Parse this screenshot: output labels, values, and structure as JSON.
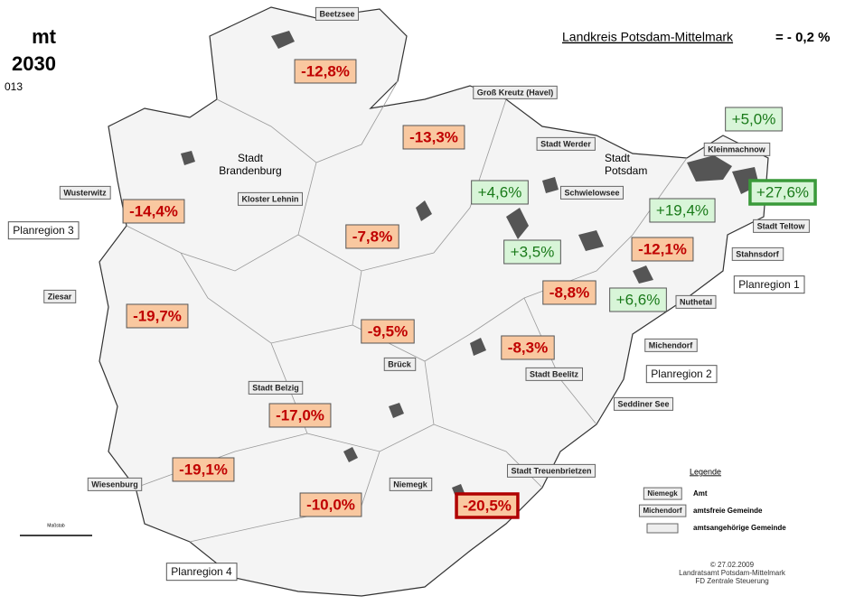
{
  "title": {
    "lines": [
      "mt",
      "2030",
      "013"
    ]
  },
  "summary": {
    "label": "Landkreis Potsdam-Mittelmark",
    "value": "= - 0,2 %"
  },
  "changes": [
    {
      "text": "-12,8%",
      "trend": "down"
    },
    {
      "text": "-13,3%",
      "trend": "down"
    },
    {
      "text": "+5,0%",
      "trend": "up"
    },
    {
      "text": "+27,6%",
      "trend": "up",
      "highlight": true
    },
    {
      "text": "+4,6%",
      "trend": "up"
    },
    {
      "text": "+19,4%",
      "trend": "up"
    },
    {
      "text": "-14,4%",
      "trend": "down"
    },
    {
      "text": "-7,8%",
      "trend": "down"
    },
    {
      "text": "+3,5%",
      "trend": "up"
    },
    {
      "text": "-12,1%",
      "trend": "down"
    },
    {
      "text": "-8,8%",
      "trend": "down"
    },
    {
      "text": "+6,6%",
      "trend": "up"
    },
    {
      "text": "-19,7%",
      "trend": "down"
    },
    {
      "text": "-9,5%",
      "trend": "down"
    },
    {
      "text": "-8,3%",
      "trend": "down"
    },
    {
      "text": "-17,0%",
      "trend": "down"
    },
    {
      "text": "-19,1%",
      "trend": "down"
    },
    {
      "text": "-10,0%",
      "trend": "down"
    },
    {
      "text": "-20,5%",
      "trend": "down",
      "highlight": true
    }
  ],
  "places": [
    "Beetzsee",
    "Groß Kreutz (Havel)",
    "Stadt Werder",
    "Schwielowsee",
    "Kleinmachnow",
    "Stadt Teltow",
    "Stahnsdorf",
    "Nuthetal",
    "Michendorf",
    "Stadt Beelitz",
    "Seddiner See",
    "Brück",
    "Stadt Treuenbrietzen",
    "Niemegk",
    "Wiesenburg",
    "Ziesar",
    "Wusterwitz",
    "Kloster Lehnin",
    "Stadt Belzig"
  ],
  "regions": [
    "Planregion 1",
    "Planregion 2",
    "Planregion 3",
    "Planregion 4"
  ],
  "cities": [
    [
      "Stadt",
      "Brandenburg"
    ],
    [
      "Stadt",
      "Potsdam"
    ]
  ],
  "legend": {
    "title": "Legende",
    "items": [
      {
        "sample": "Niemegk",
        "label": "Amt"
      },
      {
        "sample": "Michendorf",
        "label": "amtsfreie Gemeinde"
      },
      {
        "label": "amtsangehörige Gemeinde"
      }
    ]
  },
  "scale": "Maßstab",
  "credits": [
    "© 27.02.2009",
    "Landratsamt Potsdam-Mittelmark",
    "FD Zentrale Steuerung"
  ]
}
